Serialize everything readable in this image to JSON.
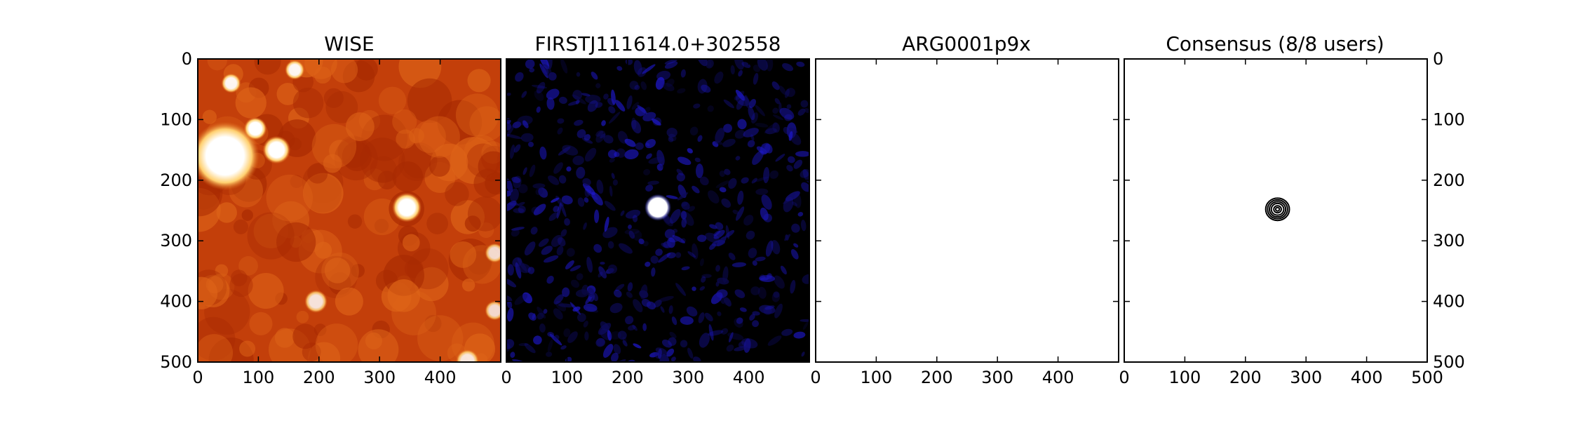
{
  "chart_data": [
    {
      "type": "heatmap",
      "title": "WISE",
      "colormap": "gist_heat",
      "xlim": [
        0,
        500
      ],
      "ylim": [
        500,
        0
      ],
      "xticks": [
        0,
        100,
        200,
        300,
        400
      ],
      "yticks": [
        0,
        100,
        200,
        300,
        400,
        500
      ],
      "sources": [
        {
          "x": 45,
          "y": 160,
          "r": 42,
          "peak": 1.0
        },
        {
          "x": 130,
          "y": 150,
          "r": 17,
          "peak": 1.0
        },
        {
          "x": 95,
          "y": 115,
          "r": 14,
          "peak": 1.0
        },
        {
          "x": 345,
          "y": 245,
          "r": 18,
          "peak": 1.0
        },
        {
          "x": 55,
          "y": 40,
          "r": 12,
          "peak": 0.95
        },
        {
          "x": 160,
          "y": 18,
          "r": 12,
          "peak": 0.95
        },
        {
          "x": 195,
          "y": 400,
          "r": 14,
          "peak": 0.85
        },
        {
          "x": 490,
          "y": 320,
          "r": 12,
          "peak": 0.8
        },
        {
          "x": 490,
          "y": 415,
          "r": 12,
          "peak": 0.8
        },
        {
          "x": 445,
          "y": 498,
          "r": 14,
          "peak": 0.85
        }
      ]
    },
    {
      "type": "heatmap",
      "title": "FIRSTJ111614.0+302558",
      "colormap": "gist_heat_r_blue",
      "xlim": [
        0,
        500
      ],
      "ylim": [
        500,
        0
      ],
      "xticks": [
        0,
        100,
        200,
        300,
        400
      ],
      "sources": [
        {
          "x": 250,
          "y": 245,
          "r": 20,
          "peak": 1.0
        }
      ]
    },
    {
      "type": "heatmap",
      "title": "ARG0001p9x",
      "xlim": [
        0,
        500
      ],
      "ylim": [
        500,
        0
      ],
      "xticks": [
        0,
        100,
        200,
        300,
        400
      ]
    },
    {
      "type": "contour",
      "title": "Consensus (8/8 users)",
      "xlim": [
        0,
        500
      ],
      "ylim": [
        500,
        0
      ],
      "xticks": [
        0,
        100,
        200,
        300,
        400,
        500
      ],
      "yticks": [
        0,
        100,
        200,
        300,
        400,
        500
      ],
      "center": {
        "x": 253,
        "y": 248
      },
      "contour_radii": [
        19,
        16,
        13,
        10,
        6,
        3
      ]
    }
  ]
}
